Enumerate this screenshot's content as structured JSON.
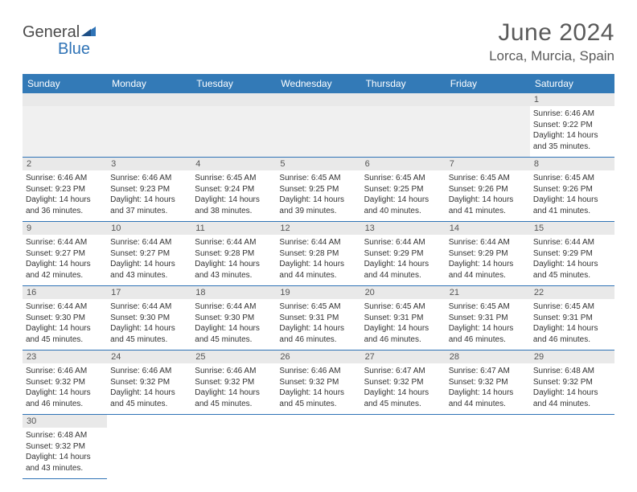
{
  "brand": {
    "name_a": "General",
    "name_b": "Blue"
  },
  "title": "June 2024",
  "location": "Lorca, Murcia, Spain",
  "colors": {
    "header_bg": "#337ab7",
    "header_text": "#ffffff",
    "daynum_bg": "#e9e9e9",
    "rule": "#2f73b6",
    "text": "#333333",
    "muted": "#5a5a5a"
  },
  "weekdays": [
    "Sunday",
    "Monday",
    "Tuesday",
    "Wednesday",
    "Thursday",
    "Friday",
    "Saturday"
  ],
  "rows": [
    {
      "nums": [
        "",
        "",
        "",
        "",
        "",
        "",
        "1"
      ],
      "cells": [
        null,
        null,
        null,
        null,
        null,
        null,
        {
          "sunrise": "6:46 AM",
          "sunset": "9:22 PM",
          "dl1": "Daylight: 14 hours",
          "dl2": "and 35 minutes."
        }
      ]
    },
    {
      "nums": [
        "2",
        "3",
        "4",
        "5",
        "6",
        "7",
        "8"
      ],
      "cells": [
        {
          "sunrise": "6:46 AM",
          "sunset": "9:23 PM",
          "dl1": "Daylight: 14 hours",
          "dl2": "and 36 minutes."
        },
        {
          "sunrise": "6:46 AM",
          "sunset": "9:23 PM",
          "dl1": "Daylight: 14 hours",
          "dl2": "and 37 minutes."
        },
        {
          "sunrise": "6:45 AM",
          "sunset": "9:24 PM",
          "dl1": "Daylight: 14 hours",
          "dl2": "and 38 minutes."
        },
        {
          "sunrise": "6:45 AM",
          "sunset": "9:25 PM",
          "dl1": "Daylight: 14 hours",
          "dl2": "and 39 minutes."
        },
        {
          "sunrise": "6:45 AM",
          "sunset": "9:25 PM",
          "dl1": "Daylight: 14 hours",
          "dl2": "and 40 minutes."
        },
        {
          "sunrise": "6:45 AM",
          "sunset": "9:26 PM",
          "dl1": "Daylight: 14 hours",
          "dl2": "and 41 minutes."
        },
        {
          "sunrise": "6:45 AM",
          "sunset": "9:26 PM",
          "dl1": "Daylight: 14 hours",
          "dl2": "and 41 minutes."
        }
      ]
    },
    {
      "nums": [
        "9",
        "10",
        "11",
        "12",
        "13",
        "14",
        "15"
      ],
      "cells": [
        {
          "sunrise": "6:44 AM",
          "sunset": "9:27 PM",
          "dl1": "Daylight: 14 hours",
          "dl2": "and 42 minutes."
        },
        {
          "sunrise": "6:44 AM",
          "sunset": "9:27 PM",
          "dl1": "Daylight: 14 hours",
          "dl2": "and 43 minutes."
        },
        {
          "sunrise": "6:44 AM",
          "sunset": "9:28 PM",
          "dl1": "Daylight: 14 hours",
          "dl2": "and 43 minutes."
        },
        {
          "sunrise": "6:44 AM",
          "sunset": "9:28 PM",
          "dl1": "Daylight: 14 hours",
          "dl2": "and 44 minutes."
        },
        {
          "sunrise": "6:44 AM",
          "sunset": "9:29 PM",
          "dl1": "Daylight: 14 hours",
          "dl2": "and 44 minutes."
        },
        {
          "sunrise": "6:44 AM",
          "sunset": "9:29 PM",
          "dl1": "Daylight: 14 hours",
          "dl2": "and 44 minutes."
        },
        {
          "sunrise": "6:44 AM",
          "sunset": "9:29 PM",
          "dl1": "Daylight: 14 hours",
          "dl2": "and 45 minutes."
        }
      ]
    },
    {
      "nums": [
        "16",
        "17",
        "18",
        "19",
        "20",
        "21",
        "22"
      ],
      "cells": [
        {
          "sunrise": "6:44 AM",
          "sunset": "9:30 PM",
          "dl1": "Daylight: 14 hours",
          "dl2": "and 45 minutes."
        },
        {
          "sunrise": "6:44 AM",
          "sunset": "9:30 PM",
          "dl1": "Daylight: 14 hours",
          "dl2": "and 45 minutes."
        },
        {
          "sunrise": "6:44 AM",
          "sunset": "9:30 PM",
          "dl1": "Daylight: 14 hours",
          "dl2": "and 45 minutes."
        },
        {
          "sunrise": "6:45 AM",
          "sunset": "9:31 PM",
          "dl1": "Daylight: 14 hours",
          "dl2": "and 46 minutes."
        },
        {
          "sunrise": "6:45 AM",
          "sunset": "9:31 PM",
          "dl1": "Daylight: 14 hours",
          "dl2": "and 46 minutes."
        },
        {
          "sunrise": "6:45 AM",
          "sunset": "9:31 PM",
          "dl1": "Daylight: 14 hours",
          "dl2": "and 46 minutes."
        },
        {
          "sunrise": "6:45 AM",
          "sunset": "9:31 PM",
          "dl1": "Daylight: 14 hours",
          "dl2": "and 46 minutes."
        }
      ]
    },
    {
      "nums": [
        "23",
        "24",
        "25",
        "26",
        "27",
        "28",
        "29"
      ],
      "cells": [
        {
          "sunrise": "6:46 AM",
          "sunset": "9:32 PM",
          "dl1": "Daylight: 14 hours",
          "dl2": "and 46 minutes."
        },
        {
          "sunrise": "6:46 AM",
          "sunset": "9:32 PM",
          "dl1": "Daylight: 14 hours",
          "dl2": "and 45 minutes."
        },
        {
          "sunrise": "6:46 AM",
          "sunset": "9:32 PM",
          "dl1": "Daylight: 14 hours",
          "dl2": "and 45 minutes."
        },
        {
          "sunrise": "6:46 AM",
          "sunset": "9:32 PM",
          "dl1": "Daylight: 14 hours",
          "dl2": "and 45 minutes."
        },
        {
          "sunrise": "6:47 AM",
          "sunset": "9:32 PM",
          "dl1": "Daylight: 14 hours",
          "dl2": "and 45 minutes."
        },
        {
          "sunrise": "6:47 AM",
          "sunset": "9:32 PM",
          "dl1": "Daylight: 14 hours",
          "dl2": "and 44 minutes."
        },
        {
          "sunrise": "6:48 AM",
          "sunset": "9:32 PM",
          "dl1": "Daylight: 14 hours",
          "dl2": "and 44 minutes."
        }
      ]
    },
    {
      "nums": [
        "30",
        "",
        "",
        "",
        "",
        "",
        ""
      ],
      "cells": [
        {
          "sunrise": "6:48 AM",
          "sunset": "9:32 PM",
          "dl1": "Daylight: 14 hours",
          "dl2": "and 43 minutes."
        },
        null,
        null,
        null,
        null,
        null,
        null
      ],
      "trailing": true
    }
  ],
  "labels": {
    "sunrise": "Sunrise: ",
    "sunset": "Sunset: "
  }
}
